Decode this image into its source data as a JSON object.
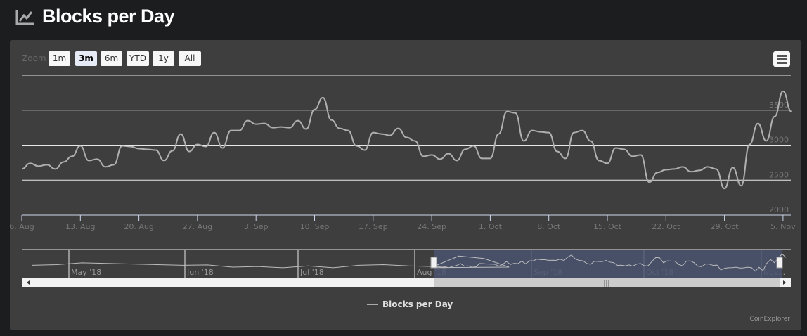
{
  "header": {
    "title": "Blocks per Day",
    "icon": "line-chart-icon"
  },
  "zoom": {
    "label": "Zoom",
    "buttons": [
      "1m",
      "3m",
      "6m",
      "YTD",
      "1y",
      "All"
    ],
    "selected": "3m"
  },
  "menu_icon": "hamburger-menu-icon",
  "legend": {
    "label": "Blocks per Day"
  },
  "credits": "CoinExplorer",
  "colors": {
    "background": "#1c1d1f",
    "panel": "#3e3e3e",
    "series": "#b0b0b0",
    "navigator_mask": "#4a5470"
  },
  "chart_data": {
    "type": "line",
    "title": "",
    "series": [
      {
        "name": "Blocks per Day",
        "start_date": "2018-08-06",
        "interval": "1 day",
        "values": [
          2660,
          2740,
          2700,
          2720,
          2660,
          2760,
          2840,
          2990,
          2780,
          2800,
          2690,
          2720,
          2990,
          2980,
          2950,
          2940,
          2930,
          2780,
          2920,
          3160,
          2910,
          3010,
          2980,
          3180,
          2960,
          3210,
          3210,
          3350,
          3300,
          3310,
          3250,
          3260,
          3250,
          3350,
          3230,
          3510,
          3680,
          3360,
          3240,
          3210,
          2990,
          2930,
          3180,
          3160,
          3140,
          3240,
          3110,
          3060,
          2840,
          2860,
          2800,
          2880,
          2780,
          2940,
          2990,
          2810,
          2810,
          3160,
          3480,
          3460,
          3060,
          3210,
          3190,
          3180,
          2910,
          2810,
          3180,
          3210,
          3060,
          2780,
          2740,
          2960,
          2940,
          2840,
          2860,
          2470,
          2610,
          2650,
          2660,
          2690,
          2620,
          2640,
          2690,
          2660,
          2380,
          2680,
          2420,
          3010,
          3310,
          3060,
          3410,
          3770,
          3480
        ]
      }
    ],
    "x_tick_labels": [
      "6. Aug",
      "13. Aug",
      "20. Aug",
      "27. Aug",
      "3. Sep",
      "10. Sep",
      "17. Sep",
      "24. Sep",
      "1. Oct",
      "8. Oct",
      "15. Oct",
      "22. Oct",
      "29. Oct",
      "5. Nov"
    ],
    "y_tick_labels": [
      "2000",
      "2500",
      "3000",
      "3500"
    ],
    "ylim": [
      2000,
      4000
    ],
    "y_axis_side": "right",
    "grid": true,
    "legend_position": "bottom",
    "navigator": {
      "month_labels": [
        "May '18",
        "Jun '18",
        "Jul '18",
        "Aug '18",
        "Sep '18",
        "Oct '18",
        "Nov..."
      ],
      "weekly_values_from_2018-04-16": [
        2850,
        2900,
        3050,
        3000,
        2950,
        2900,
        2850,
        2880,
        2700,
        2750,
        2650,
        2800,
        2650,
        2850,
        2900,
        2800,
        2750,
        3600,
        3400,
        2700
      ],
      "selected_range": [
        "2018-08-06",
        "2018-11-06"
      ]
    }
  }
}
